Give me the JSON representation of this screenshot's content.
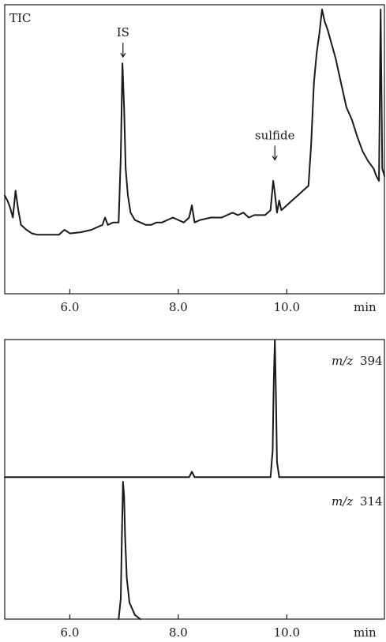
{
  "chart_data": [
    {
      "type": "line",
      "id": "tic",
      "label": "TIC",
      "xlabel": "min",
      "xlim": [
        4.8,
        11.8
      ],
      "ylim": [
        0,
        100
      ],
      "xticks": [
        6.0,
        8.0,
        10.0
      ],
      "x_tick_labels": [
        "6.0",
        "8.0",
        "10.0"
      ],
      "annotations": [
        {
          "text": "IS",
          "x": 6.98,
          "y": 78
        },
        {
          "text": "sulfide",
          "x": 9.78,
          "y": 36
        }
      ],
      "x": [
        4.8,
        4.85,
        4.9,
        4.95,
        5.0,
        5.05,
        5.1,
        5.2,
        5.3,
        5.4,
        5.5,
        5.6,
        5.7,
        5.8,
        5.9,
        6.0,
        6.2,
        6.4,
        6.5,
        6.6,
        6.65,
        6.7,
        6.8,
        6.9,
        6.94,
        6.97,
        7.0,
        7.03,
        7.07,
        7.12,
        7.2,
        7.3,
        7.4,
        7.5,
        7.6,
        7.7,
        7.8,
        7.9,
        8.0,
        8.1,
        8.2,
        8.25,
        8.3,
        8.4,
        8.5,
        8.6,
        8.7,
        8.8,
        8.9,
        9.0,
        9.1,
        9.2,
        9.3,
        9.4,
        9.5,
        9.6,
        9.7,
        9.75,
        9.78,
        9.82,
        9.86,
        9.9,
        10.0,
        10.1,
        10.2,
        10.3,
        10.4,
        10.45,
        10.5,
        10.55,
        10.6,
        10.65,
        10.7,
        10.75,
        10.8,
        10.9,
        11.0,
        11.1,
        11.2,
        11.3,
        11.4,
        11.5,
        11.6,
        11.65,
        11.7,
        11.73,
        11.76,
        11.8
      ],
      "y": [
        24,
        22,
        19,
        15,
        26,
        18,
        12,
        10,
        8.5,
        8,
        8,
        8,
        8,
        8,
        10,
        8.5,
        9,
        10,
        11,
        12,
        15,
        12,
        13,
        13,
        40,
        78,
        60,
        35,
        24,
        17,
        14,
        13,
        12,
        12,
        13,
        13,
        14,
        15,
        14,
        13,
        15,
        20,
        13,
        14,
        14.5,
        15,
        15,
        15,
        16,
        17,
        16,
        17,
        15,
        16,
        16,
        16,
        18,
        30,
        25,
        17,
        22,
        18,
        20,
        22,
        24,
        26,
        28,
        45,
        70,
        82,
        90,
        100,
        95,
        92,
        88,
        80,
        70,
        60,
        55,
        48,
        42,
        38,
        35,
        32,
        30,
        100,
        35,
        32
      ]
    },
    {
      "type": "line",
      "id": "mz394",
      "label_prefix": "m/z",
      "label_value": "394",
      "xlim": [
        4.8,
        11.8
      ],
      "ylim": [
        0,
        100
      ],
      "x": [
        4.8,
        6.0,
        8.0,
        8.2,
        8.25,
        8.3,
        9.6,
        9.7,
        9.74,
        9.76,
        9.78,
        9.8,
        9.82,
        9.86,
        9.95,
        10.5,
        11.0,
        11.8
      ],
      "y": [
        1,
        1,
        1,
        1,
        5,
        1,
        1,
        1,
        20,
        70,
        100,
        60,
        12,
        1,
        1,
        1,
        1,
        1
      ]
    },
    {
      "type": "line",
      "id": "mz314",
      "label_prefix": "m/z",
      "label_value": "314",
      "xlabel": "min",
      "xlim": [
        4.8,
        11.8
      ],
      "ylim": [
        0,
        100
      ],
      "xticks": [
        6.0,
        8.0,
        10.0
      ],
      "x_tick_labels": [
        "6.0",
        "8.0",
        "10.0"
      ],
      "x": [
        6.9,
        6.94,
        6.96,
        6.98,
        7.0,
        7.02,
        7.05,
        7.1,
        7.2,
        7.3
      ],
      "y": [
        0,
        15,
        60,
        100,
        90,
        60,
        30,
        12,
        3,
        0
      ]
    }
  ]
}
